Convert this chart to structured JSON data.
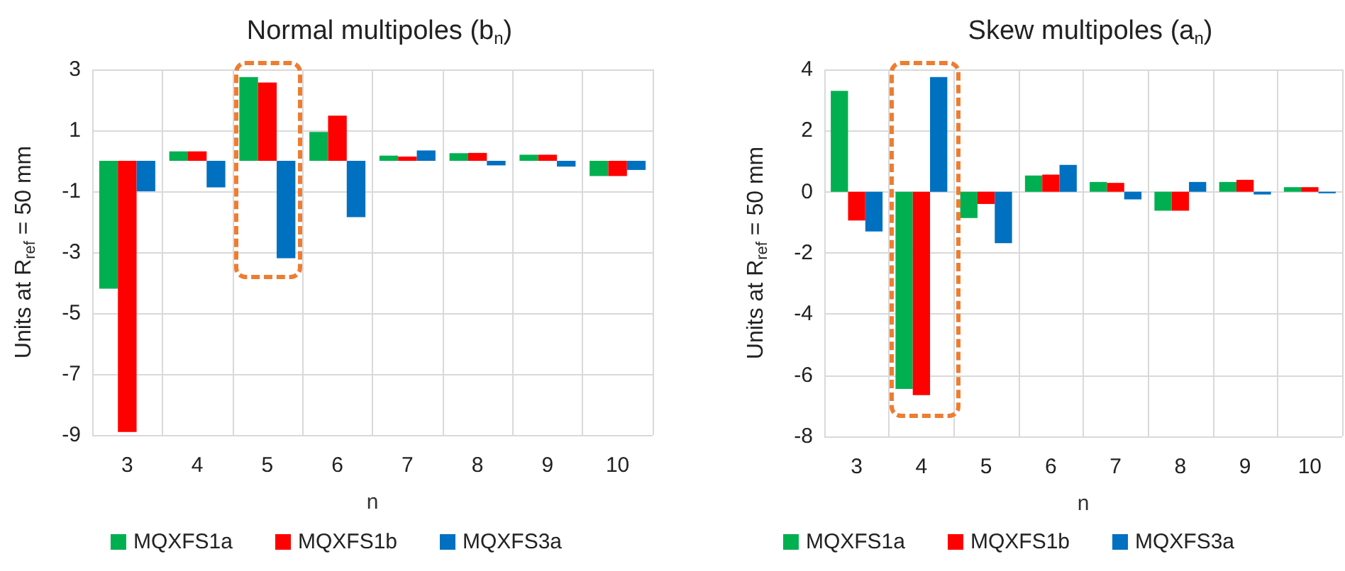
{
  "chart_data": [
    {
      "type": "bar",
      "title": "Normal multipoles (b$_{n}$)",
      "xlabel": "n",
      "ylabel": "Units at R$_{ref}$ = 50 mm",
      "categories": [
        "3",
        "4",
        "5",
        "6",
        "7",
        "8",
        "9",
        "10"
      ],
      "series": [
        {
          "name": "MQXFS1a",
          "color": "#00b050",
          "values": [
            -4.2,
            0.31,
            2.75,
            0.95,
            0.17,
            0.25,
            0.2,
            -0.5
          ]
        },
        {
          "name": "MQXFS1b",
          "color": "#ff0000",
          "values": [
            -8.9,
            0.31,
            2.57,
            1.48,
            0.14,
            0.26,
            0.2,
            -0.5
          ]
        },
        {
          "name": "MQXFS3a",
          "color": "#0070c0",
          "values": [
            -1.0,
            -0.87,
            -3.2,
            -1.85,
            0.34,
            -0.15,
            -0.19,
            -0.3
          ]
        }
      ],
      "ylim": [
        -9,
        3
      ],
      "yticks": [
        -9,
        -7,
        -5,
        -3,
        -1,
        1,
        3
      ],
      "grid": true,
      "legend": "bottom"
    },
    {
      "type": "bar",
      "title": "Skew multipoles (a$_{n}$)",
      "xlabel": "n",
      "ylabel": "Units at R$_{ref}$ = 50 mm",
      "categories": [
        "3",
        "4",
        "5",
        "6",
        "7",
        "8",
        "9",
        "10"
      ],
      "series": [
        {
          "name": "MQXFS1a",
          "color": "#00b050",
          "values": [
            3.3,
            -6.45,
            -0.86,
            0.53,
            0.32,
            -0.62,
            0.32,
            0.15
          ]
        },
        {
          "name": "MQXFS1b",
          "color": "#ff0000",
          "values": [
            -0.94,
            -6.65,
            -0.4,
            0.56,
            0.29,
            -0.62,
            0.39,
            0.15
          ]
        },
        {
          "name": "MQXFS3a",
          "color": "#0070c0",
          "values": [
            -1.3,
            3.75,
            -1.68,
            0.88,
            -0.25,
            0.32,
            -0.09,
            -0.05
          ]
        }
      ],
      "ylim": [
        -8,
        4
      ],
      "yticks": [
        -8,
        -6,
        -4,
        -2,
        0,
        2,
        4
      ],
      "grid": true,
      "legend": "bottom"
    }
  ]
}
